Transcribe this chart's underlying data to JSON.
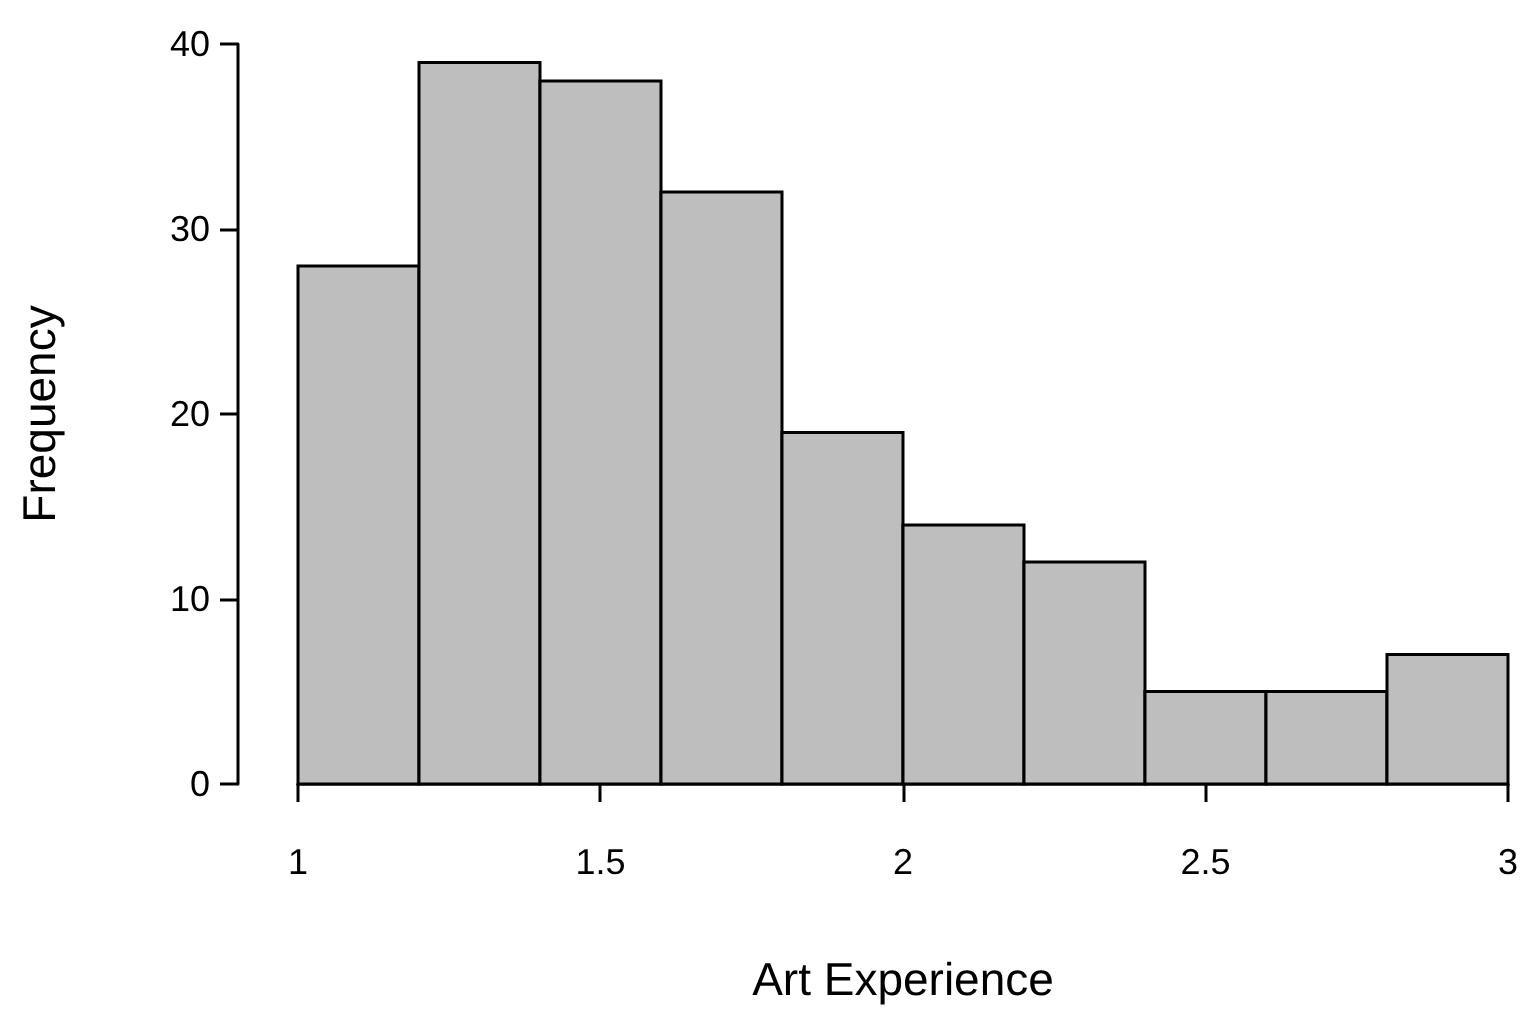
{
  "chart_data": {
    "type": "histogram",
    "xlabel": "Art Experience",
    "ylabel": "Frequency",
    "bins": [
      1,
      1.2,
      1.4,
      1.6,
      1.8,
      2,
      2.2,
      2.4,
      2.6,
      2.8,
      3
    ],
    "values": [
      28,
      39,
      38,
      32,
      19,
      14,
      12,
      5,
      5,
      7
    ],
    "color": "#bebebe",
    "xlim": [
      1,
      3
    ],
    "xticks": [
      1,
      1.5,
      2,
      2.5,
      3
    ],
    "ylim": [
      0,
      40
    ],
    "yticks": [
      0,
      10,
      20,
      30,
      40
    ]
  }
}
